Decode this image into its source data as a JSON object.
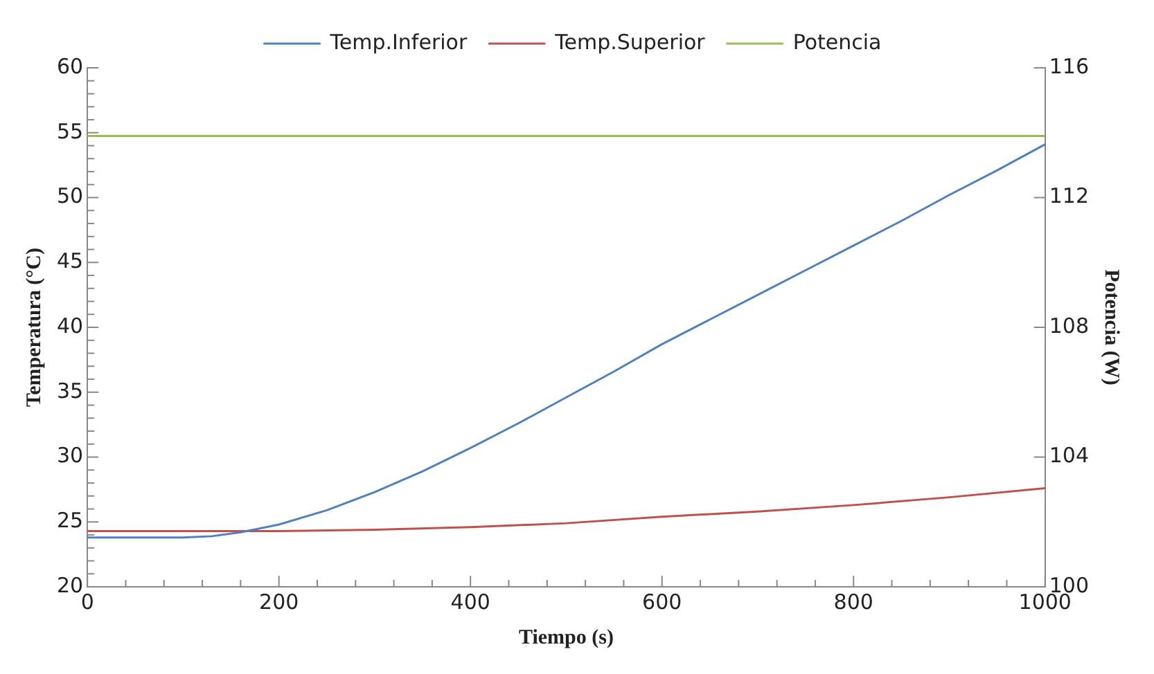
{
  "chart_data": {
    "type": "line",
    "xlabel": "Tiempo (s)",
    "ylabel": "Temperatura (°C)",
    "y2label": "Potencia (W)",
    "xlim": [
      0,
      1000
    ],
    "xticks": [
      0,
      200,
      400,
      600,
      800,
      1000
    ],
    "ylim": [
      20,
      60
    ],
    "yticks": [
      20,
      25,
      30,
      35,
      40,
      45,
      50,
      55,
      60
    ],
    "y2lim": [
      100,
      116
    ],
    "y2ticks": [
      100,
      104,
      108,
      112,
      116
    ],
    "grid": false,
    "legend": "top",
    "marker": "none",
    "line_style": "solid",
    "series": [
      {
        "name": "Temp.Inferior",
        "color": "#4f81bd",
        "x": [
          0,
          50,
          100,
          130,
          160,
          200,
          250,
          300,
          350,
          400,
          450,
          500,
          550,
          600,
          650,
          700,
          750,
          800,
          850,
          900,
          950,
          1000
        ],
        "values": [
          23.8,
          23.8,
          23.8,
          23.9,
          24.2,
          24.8,
          25.9,
          27.3,
          28.9,
          30.7,
          32.6,
          34.6,
          36.6,
          38.7,
          40.6,
          42.5,
          44.4,
          46.3,
          48.2,
          50.2,
          52.1,
          54.1
        ]
      },
      {
        "name": "Temp.Superior",
        "color": "#c0504d",
        "x": [
          0,
          100,
          200,
          300,
          400,
          500,
          600,
          700,
          800,
          900,
          1000
        ],
        "values": [
          24.3,
          24.3,
          24.3,
          24.4,
          24.6,
          24.9,
          25.4,
          25.8,
          26.3,
          26.9,
          27.6
        ]
      },
      {
        "name": "Potencia",
        "color": "#9bbb59",
        "axis": "y2",
        "x": [
          0,
          1000
        ],
        "values": [
          113.9,
          113.9
        ]
      }
    ]
  }
}
